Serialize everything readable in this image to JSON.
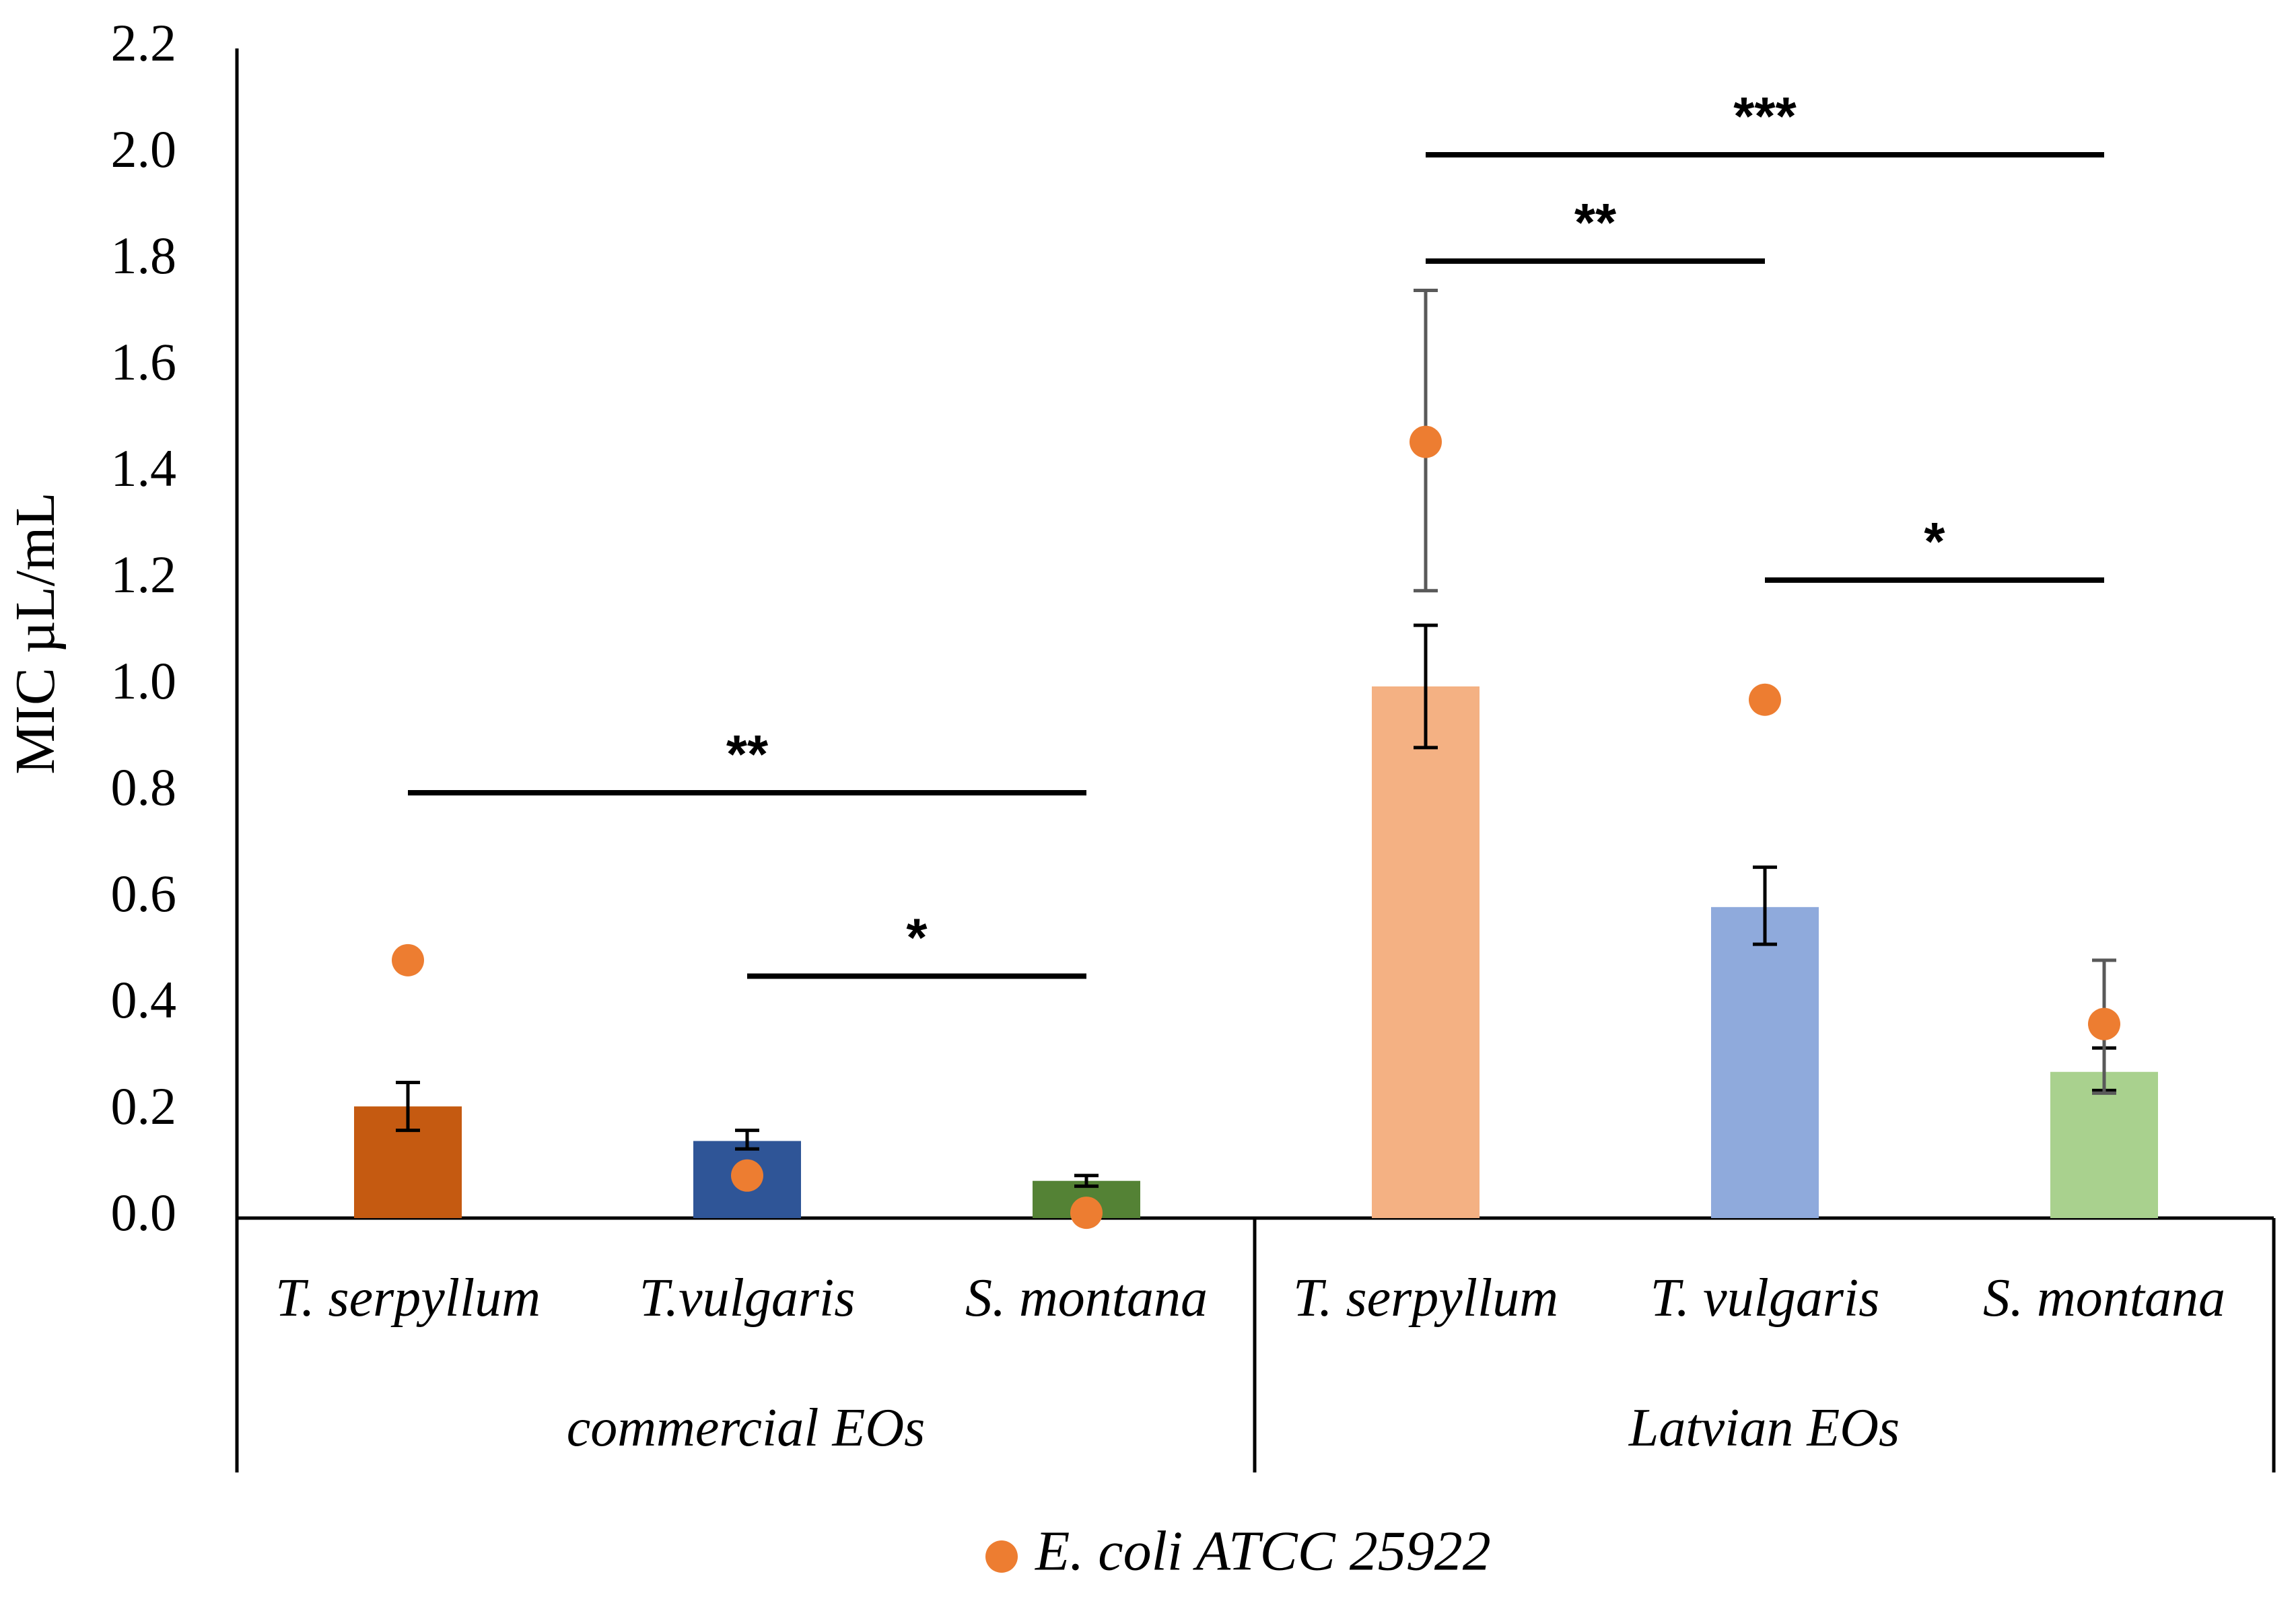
{
  "chart_data": {
    "type": "bar",
    "ylabel": "MIC µL/mL",
    "ylim": [
      0,
      2.2
    ],
    "yticks": [
      "0.0",
      "0.2",
      "0.4",
      "0.6",
      "0.8",
      "1.0",
      "1.2",
      "1.4",
      "1.6",
      "1.8",
      "2.0",
      "2.2"
    ],
    "groups": [
      {
        "label": "commercial EOs",
        "categories": [
          "T. serpyllum",
          "T.vulgaris",
          "S. montana"
        ]
      },
      {
        "label": "Latvian EOs",
        "categories": [
          "T. serpyllum",
          "T. vulgaris",
          "S. montana"
        ]
      }
    ],
    "bars": [
      {
        "value": 0.21,
        "err_low": 0.165,
        "err_high": 0.255,
        "color": "#c55a11"
      },
      {
        "value": 0.145,
        "err_low": 0.13,
        "err_high": 0.165,
        "color": "#2f5597"
      },
      {
        "value": 0.07,
        "err_low": 0.06,
        "err_high": 0.08,
        "color": "#548235"
      },
      {
        "value": 1.0,
        "err_low": 0.885,
        "err_high": 1.115,
        "color": "#f4b183"
      },
      {
        "value": 0.585,
        "err_low": 0.515,
        "err_high": 0.66,
        "color": "#8faadc"
      },
      {
        "value": 0.275,
        "err_low": 0.24,
        "err_high": 0.32,
        "color": "#a9d18e"
      }
    ],
    "series": [
      {
        "name": "E. coli ATCC 25922",
        "color": "#ed7d31",
        "values": [
          0.485,
          0.08,
          0.01,
          1.46,
          0.975,
          0.365
        ],
        "err_low": [
          null,
          null,
          null,
          1.18,
          null,
          0.235
        ],
        "err_high": [
          null,
          null,
          null,
          1.745,
          null,
          0.485
        ]
      }
    ],
    "significance": [
      {
        "from": 0,
        "to": 2,
        "y": 0.8,
        "label": "**"
      },
      {
        "from": 1,
        "to": 2,
        "y": 0.455,
        "label": "*"
      },
      {
        "from": 3,
        "to": 5,
        "y": 2.0,
        "label": "***"
      },
      {
        "from": 3,
        "to": 4,
        "y": 1.8,
        "label": "**"
      },
      {
        "from": 4,
        "to": 5,
        "y": 1.2,
        "label": "*"
      }
    ]
  }
}
